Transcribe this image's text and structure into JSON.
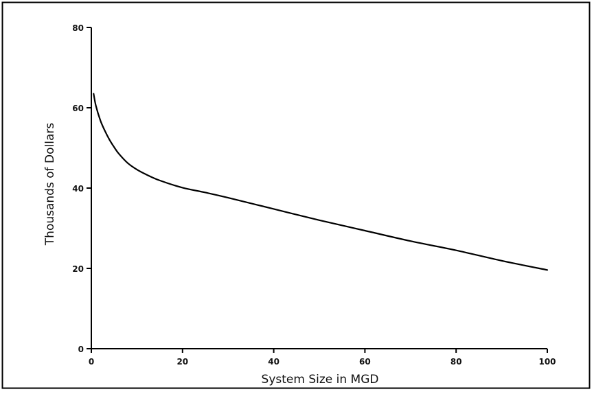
{
  "chart_data": {
    "type": "line",
    "title": "",
    "xlabel": "System Size in MGD",
    "ylabel": "Thousands of Dollars",
    "xlim": [
      0,
      100
    ],
    "ylim": [
      0,
      80
    ],
    "x_ticks": [
      0,
      20,
      40,
      60,
      80,
      100
    ],
    "y_ticks": [
      0,
      20,
      40,
      60,
      80
    ],
    "grid": false,
    "legend": "none",
    "line_color": "#000000",
    "series": [
      {
        "x": [
          0.5,
          1,
          2,
          3,
          4,
          5,
          6,
          8,
          10,
          12,
          15,
          20,
          25,
          30,
          40,
          50,
          60,
          70,
          80,
          90,
          100
        ],
        "y": [
          63.5,
          60.5,
          56.8,
          54.2,
          52.0,
          50.2,
          48.6,
          46.2,
          44.6,
          43.4,
          41.9,
          40.1,
          38.9,
          37.6,
          34.8,
          32.0,
          29.4,
          26.8,
          24.5,
          21.9,
          19.6
        ]
      }
    ]
  }
}
